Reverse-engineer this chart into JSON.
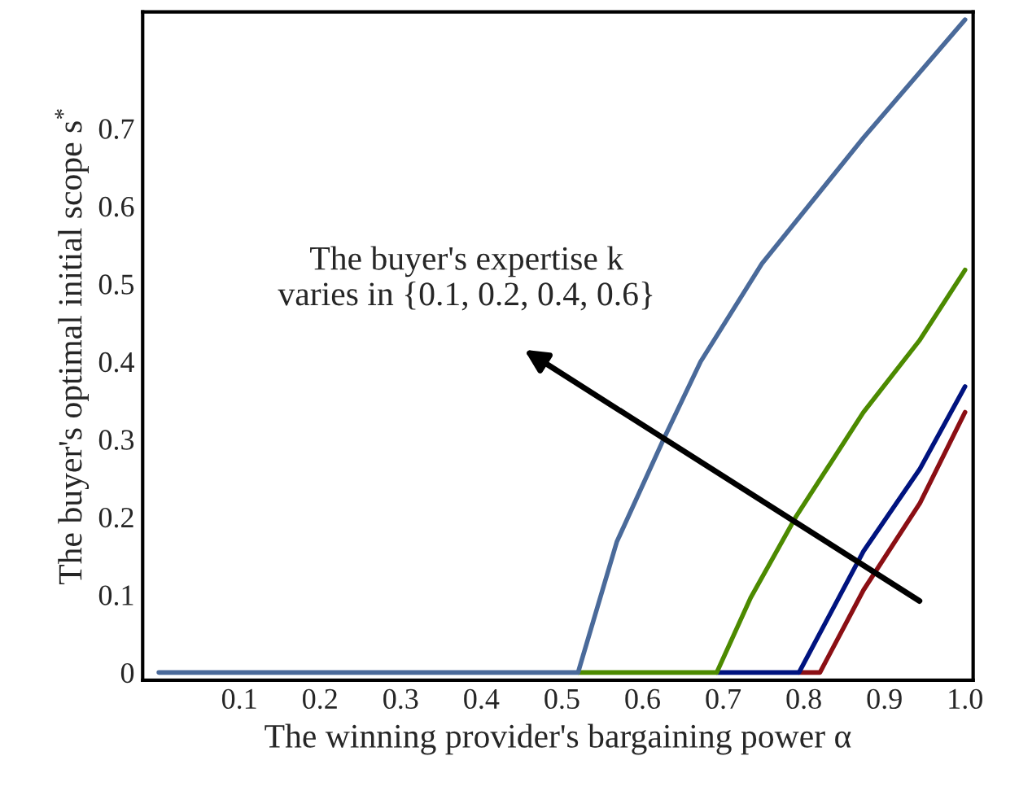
{
  "chart_data": {
    "type": "line",
    "xlabel": "The winning provider's bargaining power α",
    "ylabel": "The buyer's optimal initial scope s$^{*}$",
    "annotations": [
      "The buyer's expertise k\nvaries in {0.1, 0.2, 0.4, 0.6}"
    ],
    "series": [
      {
        "color": "#8b0f14",
        "x": [
          0.794,
          0.82,
          0.874,
          0.944,
          1.0
        ],
        "values": [
          0,
          0,
          0.106,
          0.218,
          0.335
        ]
      },
      {
        "color": "#00137f",
        "x": [
          0.692,
          0.794,
          0.874,
          0.944,
          1.0
        ],
        "values": [
          0,
          0,
          0.156,
          0.262,
          0.368
        ]
      },
      {
        "color": "#4c8a00",
        "x": [
          0.52,
          0.692,
          0.734,
          0.79,
          0.874,
          0.944,
          1.0
        ],
        "values": [
          0,
          0,
          0.096,
          0.2,
          0.335,
          0.428,
          0.518
        ]
      },
      {
        "color": "#4a6a9a",
        "x": [
          0,
          0.52,
          0.568,
          0.626,
          0.672,
          0.748,
          0.874,
          1.0
        ],
        "values": [
          0,
          0,
          0.168,
          0.3,
          0.4,
          0.526,
          0.688,
          0.84
        ]
      }
    ],
    "xlim": [
      -0.02,
      1.01
    ],
    "ylim": [
      -0.01,
      0.85
    ],
    "xticks": [
      0.1,
      0.2,
      0.3,
      0.4,
      0.5,
      0.6,
      0.7,
      0.8,
      0.9,
      {
        "value": 1.0,
        "label": "1.0"
      }
    ],
    "yticks": [
      0,
      0.1,
      0.2,
      0.3,
      0.4,
      0.5,
      0.6,
      0.7
    ],
    "grid": false,
    "legend": false,
    "marker": "none",
    "line_style": "solid"
  }
}
